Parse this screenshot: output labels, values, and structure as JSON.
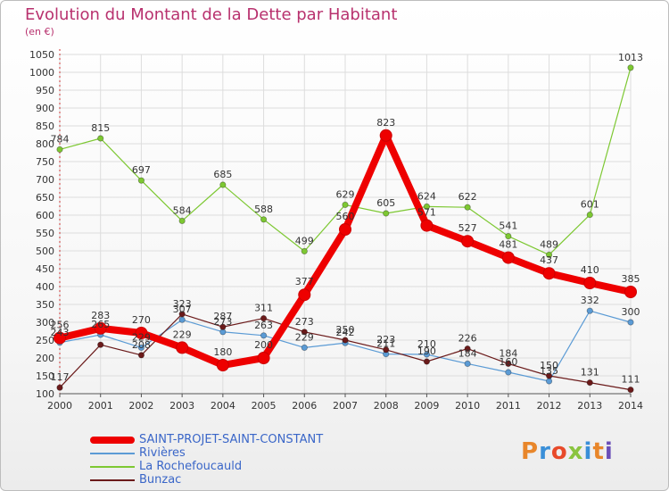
{
  "title": "Evolution du Montant de la Dette par Habitant",
  "subtitle": "(en €)",
  "logo_text": "Proxiti",
  "colors": {
    "title": "#b8316e",
    "grid": "#dddddd",
    "axis": "#555555",
    "legend_text": "#3a66c8"
  },
  "chart_data": {
    "type": "line",
    "x": [
      "2000",
      "2001",
      "2002",
      "2003",
      "2004",
      "2005",
      "2006",
      "2007",
      "2008",
      "2009",
      "2010",
      "2011",
      "2012",
      "2013",
      "2014"
    ],
    "ylim": [
      100,
      1050
    ],
    "yticks": [
      100,
      150,
      200,
      250,
      300,
      350,
      400,
      450,
      500,
      550,
      600,
      650,
      700,
      750,
      800,
      850,
      900,
      950,
      1000,
      1050
    ],
    "grid": true,
    "legend_position": "bottom-left",
    "series": [
      {
        "name": "SAINT-PROJET-SAINT-CONSTANT",
        "color": "#ee0000",
        "values": [
          256,
          283,
          270,
          229,
          180,
          200,
          377,
          560,
          823,
          571,
          527,
          481,
          437,
          410,
          385
        ],
        "labels": [
          "256",
          "283",
          "270",
          "229",
          "180",
          "200",
          "377",
          "560",
          "823",
          "571",
          "527",
          "481",
          "437",
          "410",
          "385"
        ]
      },
      {
        "name": "Rivières",
        "color": "#5b9bd5",
        "values": [
          243,
          265,
          229,
          307,
          273,
          263,
          229,
          242,
          211,
          210,
          184,
          160,
          135,
          332,
          300
        ],
        "labels": [
          "243",
          "265",
          "229",
          "307",
          "273",
          "263",
          "229",
          "242",
          "211",
          "210",
          "184",
          "160",
          "135",
          "332",
          "300"
        ]
      },
      {
        "name": "La Rochefoucauld",
        "color": "#7dc832",
        "values": [
          784,
          815,
          697,
          584,
          685,
          588,
          499,
          629,
          605,
          624,
          622,
          541,
          489,
          601,
          1013
        ],
        "labels": [
          "784",
          "815",
          "697",
          "584",
          "685",
          "588",
          "499",
          "629",
          "605",
          "624",
          "622",
          "541",
          "489",
          "601",
          "1013"
        ]
      },
      {
        "name": "Bunzac",
        "color": "#6b1a1a",
        "values": [
          117,
          237,
          208,
          323,
          287,
          311,
          273,
          250,
          223,
          190,
          226,
          184,
          150,
          131,
          111
        ],
        "labels": [
          "117",
          "",
          "208",
          "323",
          "287",
          "311",
          "273",
          "250",
          "223",
          "190",
          "226",
          "184",
          "150",
          "131",
          "111"
        ]
      }
    ]
  }
}
